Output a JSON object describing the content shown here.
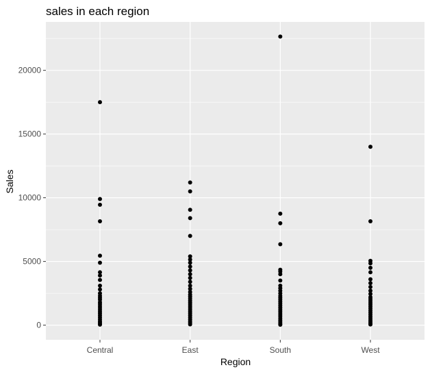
{
  "chart_data": {
    "type": "scatter",
    "title": "sales in each region",
    "xlabel": "Region",
    "ylabel": "Sales",
    "categories": [
      "Central",
      "East",
      "South",
      "West"
    ],
    "y_ticks": [
      0,
      5000,
      10000,
      15000,
      20000
    ],
    "ylim": [
      -1150,
      23800
    ],
    "grid": true,
    "background": "#ebebeb",
    "grid_color": "#ffffff",
    "point_color": "#000000",
    "points": [
      {
        "x": "Central",
        "values": [
          17500,
          9900,
          9450,
          8150,
          5450,
          4900,
          4150,
          3900,
          3550,
          3100,
          2800,
          2500,
          2300,
          2150,
          2000,
          1800,
          1650,
          1500,
          1350,
          1200,
          1050,
          900,
          750,
          600,
          450,
          300,
          200,
          100,
          40
        ]
      },
      {
        "x": "East",
        "values": [
          11200,
          10500,
          9050,
          8400,
          7000,
          5400,
          5150,
          4900,
          4600,
          4300,
          4000,
          3700,
          3400,
          3100,
          2850,
          2600,
          2400,
          2250,
          2100,
          1950,
          1800,
          1650,
          1500,
          1350,
          1200,
          1050,
          900,
          750,
          600,
          450,
          300,
          180,
          60
        ]
      },
      {
        "x": "South",
        "values": [
          22650,
          8750,
          8000,
          6350,
          4350,
          4200,
          4000,
          3500,
          3100,
          2900,
          2700,
          2500,
          2300,
          2150,
          2000,
          1850,
          1700,
          1550,
          1400,
          1250,
          1100,
          950,
          800,
          650,
          500,
          350,
          220,
          100,
          30
        ]
      },
      {
        "x": "West",
        "values": [
          14000,
          8150,
          5050,
          4850,
          4500,
          4150,
          3600,
          3300,
          3000,
          2700,
          2450,
          2200,
          2050,
          1900,
          1750,
          1600,
          1450,
          1300,
          1150,
          1000,
          850,
          700,
          550,
          400,
          270,
          150,
          50
        ]
      }
    ]
  }
}
